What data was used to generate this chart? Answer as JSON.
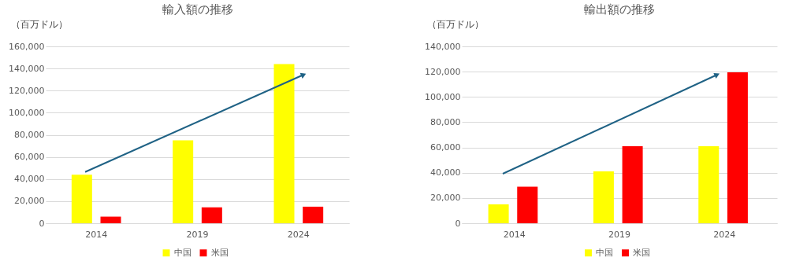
{
  "chart_data": [
    {
      "type": "bar",
      "title": "輸入額の推移",
      "ylabel": "（百万ドル）",
      "categories": [
        "2014",
        "2019",
        "2024"
      ],
      "series": [
        {
          "name": "中国",
          "color": "#ffff00",
          "values": [
            44000,
            75000,
            144000
          ]
        },
        {
          "name": "米国",
          "color": "#ff0000",
          "values": [
            6000,
            14400,
            15000
          ]
        }
      ],
      "ylim": [
        0,
        160000
      ],
      "yticks": [
        0,
        {
          "value": 20000,
          "label": "20,000"
        },
        {
          "value": 40000,
          "label": "40,000"
        },
        {
          "value": 60000,
          "label": "60,000"
        },
        {
          "value": 80000,
          "label": "80,000"
        },
        {
          "value": 100000,
          "label": "100,000"
        },
        {
          "value": 120000,
          "label": "120,000"
        },
        {
          "value": 140000,
          "label": "140,000"
        },
        {
          "value": 160000,
          "label": "160,000"
        }
      ],
      "grid": "y",
      "legend": "bottom"
    },
    {
      "type": "bar",
      "title": "輸出額の推移",
      "ylabel": "（百万ドル）",
      "categories": [
        "2014",
        "2019",
        "2024"
      ],
      "series": [
        {
          "name": "中国",
          "color": "#ffff00",
          "values": [
            15000,
            41000,
            61000
          ]
        },
        {
          "name": "米国",
          "color": "#ff0000",
          "values": [
            29000,
            61000,
            119500
          ]
        }
      ],
      "ylim": [
        0,
        140000
      ],
      "yticks": [
        0,
        {
          "value": 20000,
          "label": "20,000"
        },
        {
          "value": 40000,
          "label": "40,000"
        },
        {
          "value": 60000,
          "label": "60,000"
        },
        {
          "value": 80000,
          "label": "80,000"
        },
        {
          "value": 100000,
          "label": "100,000"
        },
        {
          "value": 120000,
          "label": "120,000"
        },
        {
          "value": 140000,
          "label": "140,000"
        }
      ],
      "grid": "y",
      "legend": "bottom"
    }
  ]
}
